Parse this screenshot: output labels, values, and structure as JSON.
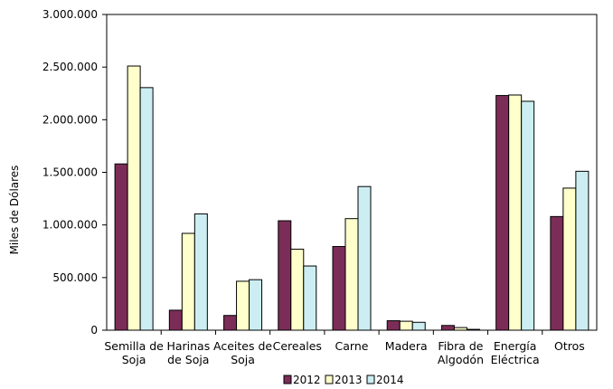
{
  "chart_data": {
    "type": "bar",
    "title": "",
    "xlabel": "",
    "ylabel": "Miles de Dólares",
    "ylim": [
      0,
      3000000
    ],
    "yticks": [
      0,
      500000,
      1000000,
      1500000,
      2000000,
      2500000,
      3000000
    ],
    "ytick_labels": [
      "0",
      "500.000",
      "1.000.000",
      "1.500.000",
      "2.000.000",
      "2.500.000",
      "3.000.000"
    ],
    "categories": [
      [
        "Semilla de",
        "Soja"
      ],
      [
        "Harinas",
        "de Soja"
      ],
      [
        "Aceites de",
        "Soja"
      ],
      [
        "Cereales"
      ],
      [
        "Carne"
      ],
      [
        "Madera"
      ],
      [
        "Fibra de",
        "Algodón"
      ],
      [
        "Energía",
        "Eléctrica"
      ],
      [
        "Otros"
      ]
    ],
    "series": [
      {
        "name": "2012",
        "color": "#7b2d57",
        "values": [
          1580000,
          190000,
          140000,
          1040000,
          795000,
          90000,
          45000,
          2230000,
          1080000
        ]
      },
      {
        "name": "2013",
        "color": "#ffffcc",
        "values": [
          2510000,
          920000,
          465000,
          770000,
          1060000,
          85000,
          25000,
          2235000,
          1350000
        ]
      },
      {
        "name": "2014",
        "color": "#cceef3",
        "values": [
          2305000,
          1105000,
          480000,
          610000,
          1365000,
          75000,
          8000,
          2175000,
          1510000
        ]
      }
    ],
    "grid": false,
    "legend_position": "bottom"
  }
}
